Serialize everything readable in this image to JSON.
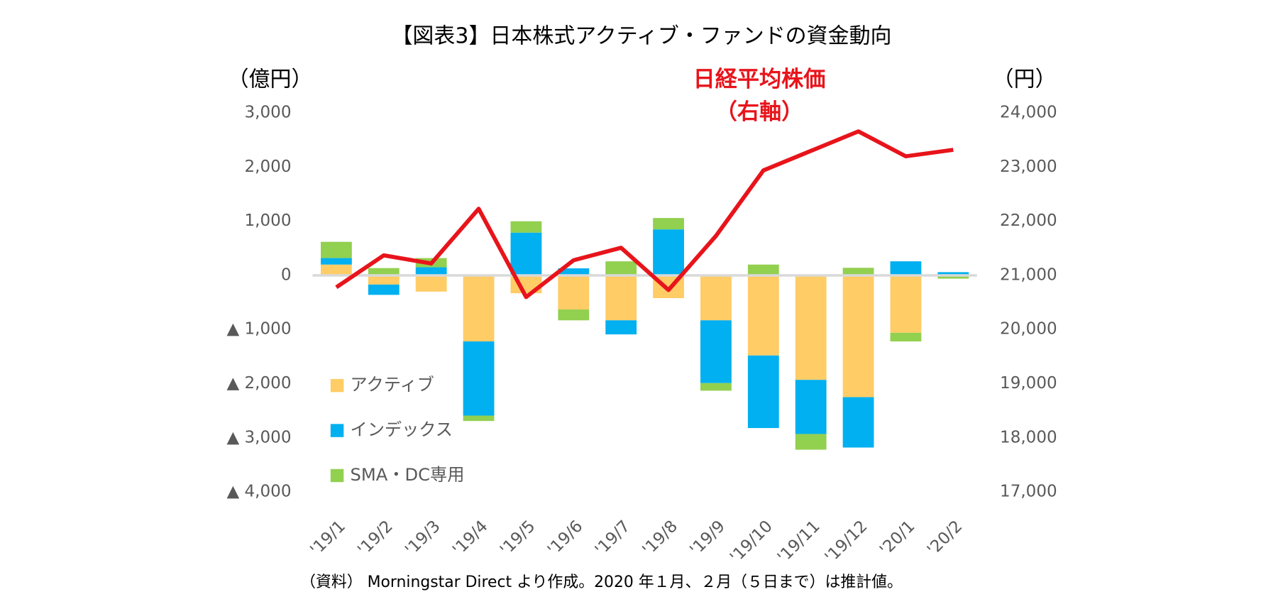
{
  "chart_data": {
    "type": "bar",
    "stacked": true,
    "title": "【図表3】日本株式アクティブ・ファンドの資金動向",
    "y_label": "（億円）",
    "y2_label": "（円）",
    "annotation": [
      "日経平均株価",
      "（右軸）"
    ],
    "source": "（資料） Morningstar Direct より作成。2020 年１月、２月（５日まで）は推計値。",
    "categories": [
      "'19/1",
      "'19/2",
      "'19/3",
      "'19/4",
      "'19/5",
      "'19/6",
      "'19/7",
      "'19/8",
      "'19/9",
      "'19/10",
      "'19/11",
      "'19/12",
      "'20/1",
      "'20/2"
    ],
    "series": [
      {
        "name": "アクティブ",
        "color": "#FFCC66",
        "values": [
          200,
          -170,
          -300,
          -1220,
          -330,
          -630,
          -830,
          -420,
          -830,
          -1480,
          -1930,
          -2250,
          -1060,
          0
        ]
      },
      {
        "name": "インデックス",
        "color": "#00B0F0",
        "values": [
          120,
          -190,
          150,
          -1370,
          790,
          130,
          -260,
          850,
          -1160,
          -1340,
          -1000,
          -930,
          260,
          60
        ]
      },
      {
        "name": "SMA・DC専用",
        "color": "#92D050",
        "values": [
          300,
          135,
          170,
          -100,
          210,
          -200,
          260,
          210,
          -140,
          200,
          -290,
          140,
          -160,
          -60
        ]
      },
      {
        "name": "日経平均株価",
        "type": "line",
        "axis": "y2",
        "color": "#E8141B",
        "values": [
          20780,
          21370,
          21220,
          22230,
          20600,
          21280,
          21510,
          20730,
          21730,
          22940,
          23300,
          23660,
          23200,
          23320
        ]
      }
    ],
    "ylim": [
      -4000,
      3000
    ],
    "yticks": [
      {
        "value": -4000,
        "label": "▲ 4,000"
      },
      {
        "value": -3000,
        "label": "▲ 3,000"
      },
      {
        "value": -2000,
        "label": "▲ 2,000"
      },
      {
        "value": -1000,
        "label": "▲ 1,000"
      },
      0,
      {
        "value": 1000,
        "label": "1,000"
      },
      {
        "value": 2000,
        "label": "2,000"
      },
      {
        "value": 3000,
        "label": "3,000"
      }
    ],
    "y2lim": [
      17000,
      24000
    ],
    "y2ticks": [
      {
        "value": 17000,
        "label": "17,000"
      },
      {
        "value": 18000,
        "label": "18,000"
      },
      {
        "value": 19000,
        "label": "19,000"
      },
      {
        "value": 20000,
        "label": "20,000"
      },
      {
        "value": 21000,
        "label": "21,000"
      },
      {
        "value": 22000,
        "label": "22,000"
      },
      {
        "value": 23000,
        "label": "23,000"
      },
      {
        "value": 24000,
        "label": "24,000"
      }
    ],
    "legend": "lower-left",
    "grid": false
  }
}
